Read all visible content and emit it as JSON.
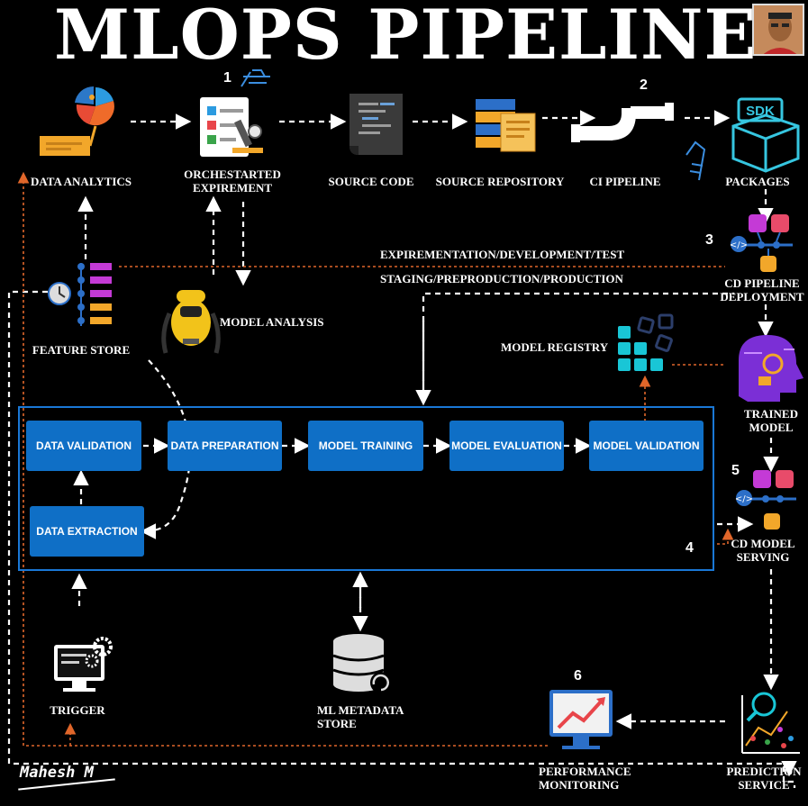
{
  "title": "MLOPS PIPELINE",
  "author": "Mahesh M",
  "steps": {
    "n1": "1",
    "n2": "2",
    "n3": "3",
    "n4": "4",
    "n5": "5",
    "n6": "6"
  },
  "nodes": {
    "data_analytics": "DATA ANALYTICS",
    "orchestrated_1": "ORCHESTARTED",
    "orchestrated_2": "EXPIREMENT",
    "source_code": "SOURCE CODE",
    "source_repository": "SOURCE REPOSITORY",
    "ci_pipeline": "CI PIPELINE",
    "packages": "PACKAGES",
    "cd_pipeline_1": "CD PIPELINE",
    "cd_pipeline_2": "DEPLOYMENT",
    "feature_store": "FEATURE STORE",
    "model_analysis": "MODEL ANALYSIS",
    "model_registry": "MODEL REGISTRY",
    "trained_model_1": "TRAINED",
    "trained_model_2": "MODEL",
    "cd_serving_1": "CD MODEL",
    "cd_serving_2": "SERVING",
    "trigger": "TRIGGER",
    "metadata_1": "ML METADATA",
    "metadata_2": "STORE",
    "monitoring_1": "PERFORMANCE",
    "monitoring_2": "MONITORING",
    "prediction_1": "PREDICTION",
    "prediction_2": "SERVICE",
    "sdk": "SDK"
  },
  "environments": {
    "upper": "EXPIREMENTATION/DEVELOPMENT/TEST",
    "lower": "STAGING/PREPRODUCTION/PRODUCTION"
  },
  "pipeline_stages": {
    "data_validation": "DATA VALIDATION",
    "data_preparation": "DATA PREPARATION",
    "model_training": "MODEL TRAINING",
    "model_evaluation": "MODEL EVALUATION",
    "model_validation": "MODEL VALIDATION",
    "data_extraction": "DATA EXTRACTION"
  },
  "colors": {
    "background": "#000000",
    "stage_blue": "#0f6fc6",
    "frame_blue": "#1a78d6",
    "orange_dashed": "#e0662a",
    "white_dashed": "#ffffff"
  }
}
